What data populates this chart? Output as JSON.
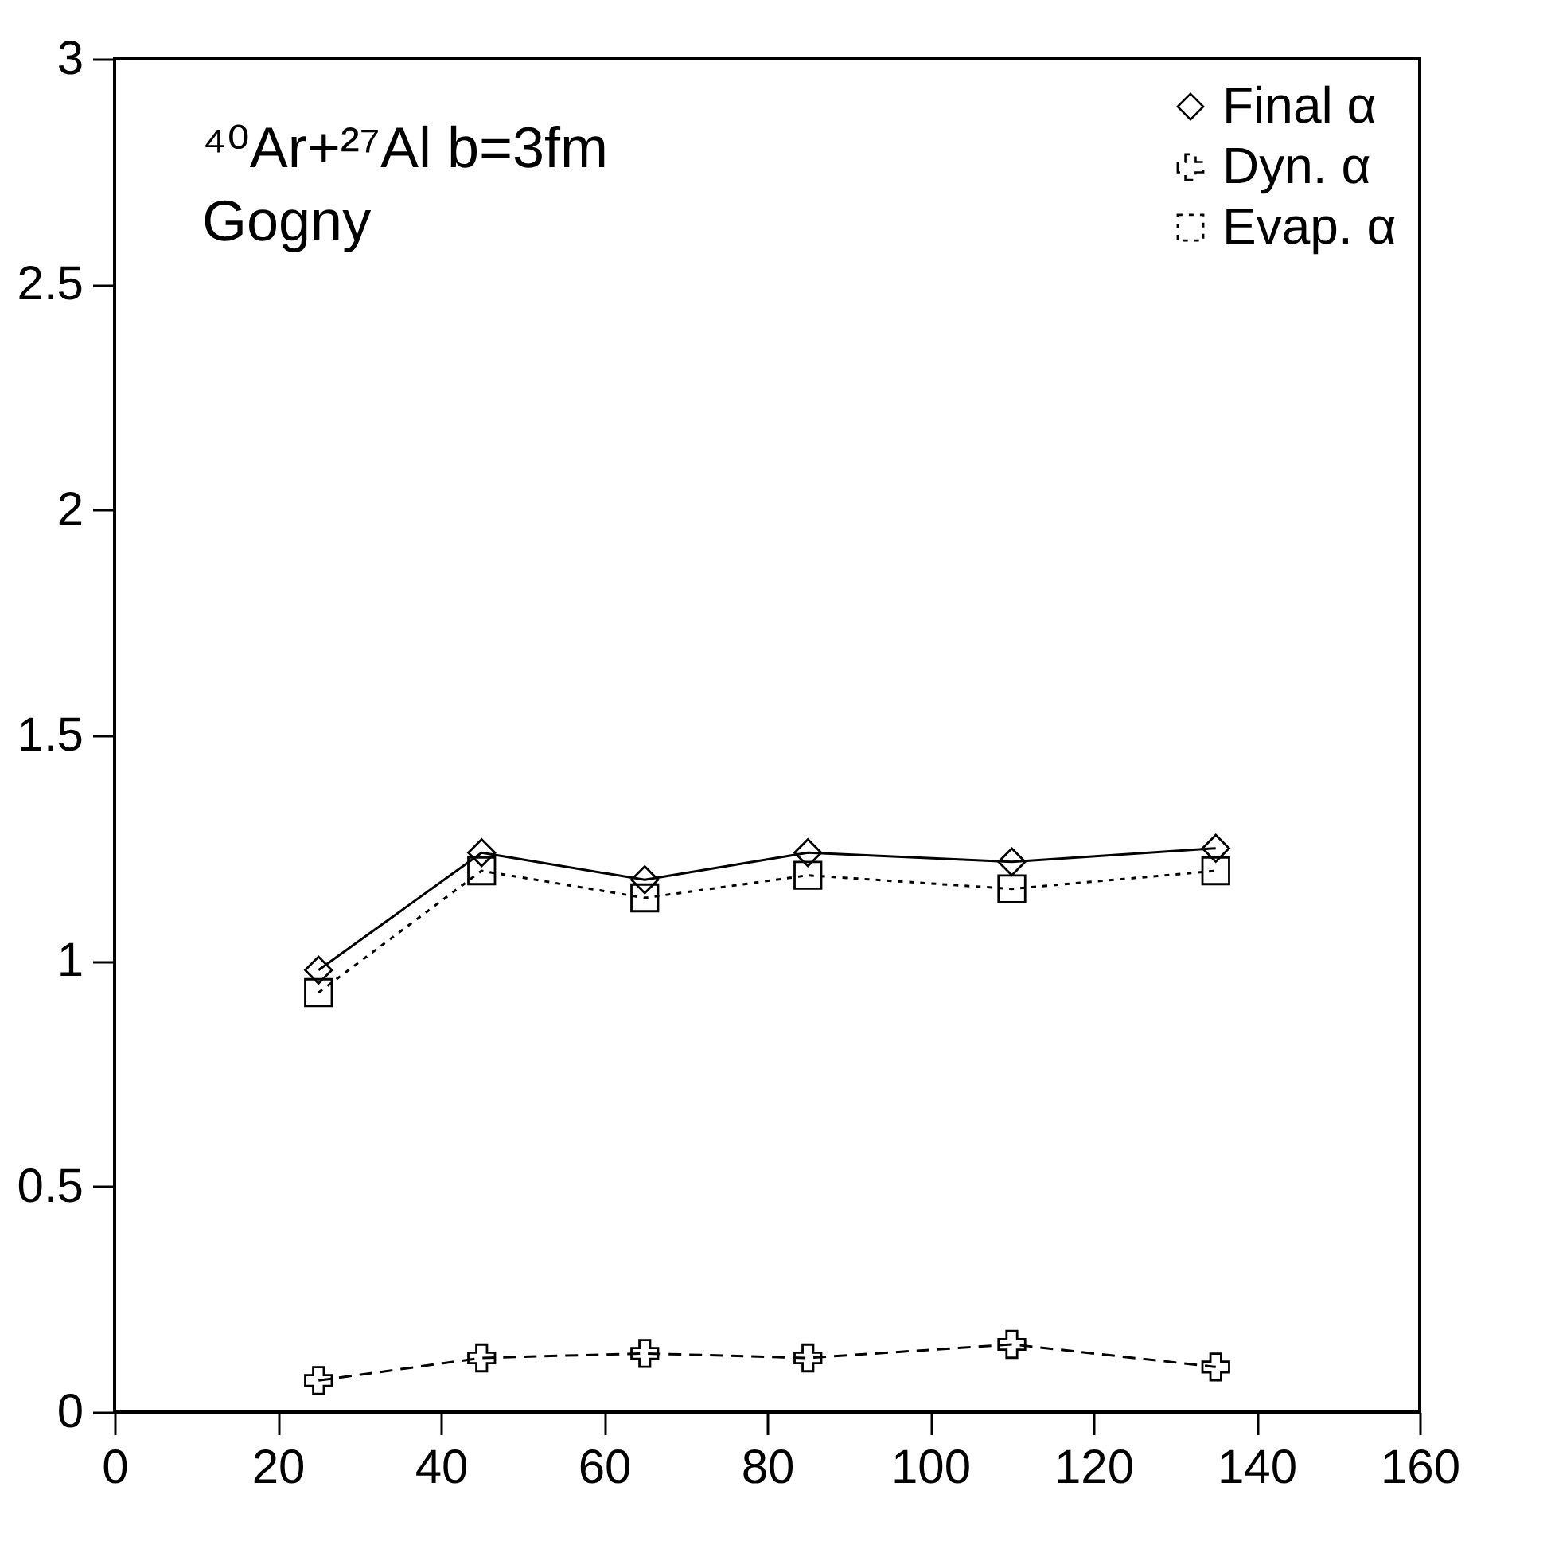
{
  "chart_data": {
    "type": "line",
    "annotations": [
      "⁴⁰Ar+²⁷Al  b=3fm",
      "Gogny"
    ],
    "x": [
      25,
      45,
      65,
      85,
      110,
      135
    ],
    "series": [
      {
        "name": "Final α",
        "color": "#000000",
        "marker": "diamond",
        "line_style": "solid",
        "values": [
          0.98,
          1.24,
          1.18,
          1.24,
          1.22,
          1.25
        ]
      },
      {
        "name": "Dyn. α",
        "color": "#000000",
        "marker": "cross",
        "line_style": "dashed",
        "values": [
          0.07,
          0.12,
          0.13,
          0.12,
          0.15,
          0.1
        ]
      },
      {
        "name": "Evap. α",
        "color": "#000000",
        "marker": "square",
        "line_style": "dotted",
        "values": [
          0.93,
          1.2,
          1.14,
          1.19,
          1.16,
          1.2
        ]
      }
    ],
    "xlim": [
      0,
      160
    ],
    "xticks": [
      0,
      20,
      40,
      60,
      80,
      100,
      120,
      140,
      160
    ],
    "ylim": [
      0,
      3
    ],
    "yticks": [
      0,
      0.5,
      1,
      1.5,
      2,
      2.5,
      3
    ],
    "grid": false,
    "legend": "top right"
  }
}
